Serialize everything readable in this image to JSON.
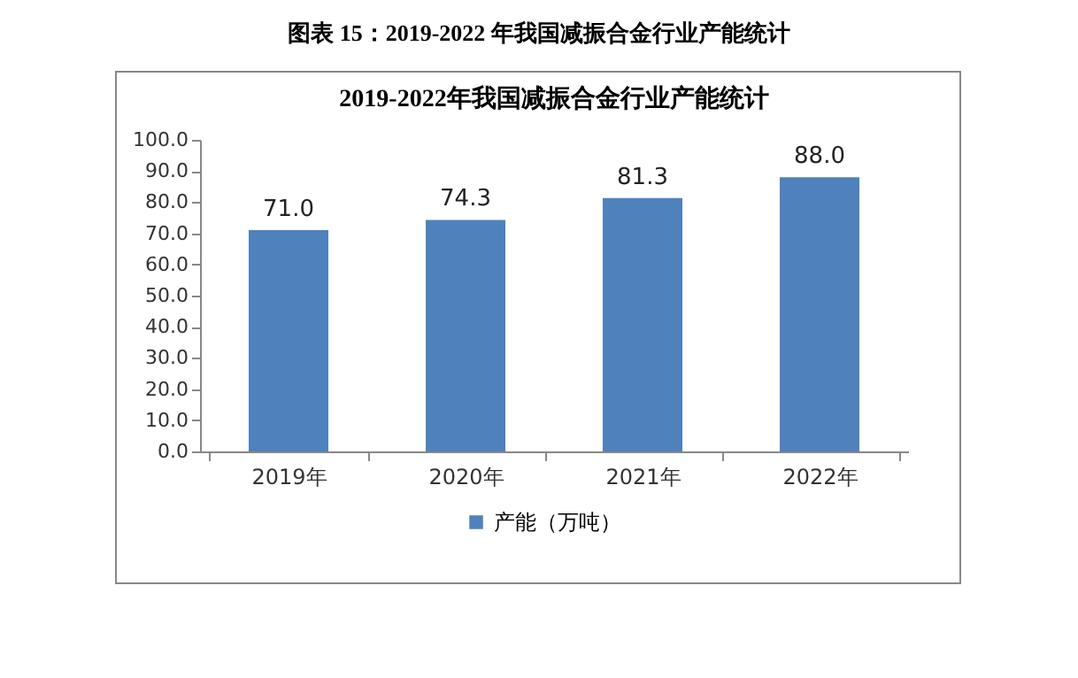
{
  "chart_data": {
    "type": "bar",
    "title": "图表 15：2019-2022 年我国减振合金行业产能统计",
    "subtitle": "2019-2022年我国减振合金行业产能统计",
    "categories": [
      "2019年",
      "2020年",
      "2021年",
      "2022年"
    ],
    "series": [
      {
        "name": "产能（万吨）",
        "color": "#4f81bd",
        "values": [
          71.0,
          74.3,
          81.3,
          88.0
        ],
        "value_labels": [
          "71.0",
          "74.3",
          "81.3",
          "88.0"
        ]
      }
    ],
    "ylim": [
      0,
      100
    ],
    "yticks": [
      {
        "value": 0,
        "label": "0.0"
      },
      {
        "value": 10,
        "label": "10.0"
      },
      {
        "value": 20,
        "label": "20.0"
      },
      {
        "value": 30,
        "label": "30.0"
      },
      {
        "value": 40,
        "label": "40.0"
      },
      {
        "value": 50,
        "label": "50.0"
      },
      {
        "value": 60,
        "label": "60.0"
      },
      {
        "value": 70,
        "label": "70.0"
      },
      {
        "value": 80,
        "label": "80.0"
      },
      {
        "value": 90,
        "label": "90.0"
      },
      {
        "value": 100,
        "label": "100.0"
      }
    ],
    "grid": false,
    "legend": "bottom"
  }
}
